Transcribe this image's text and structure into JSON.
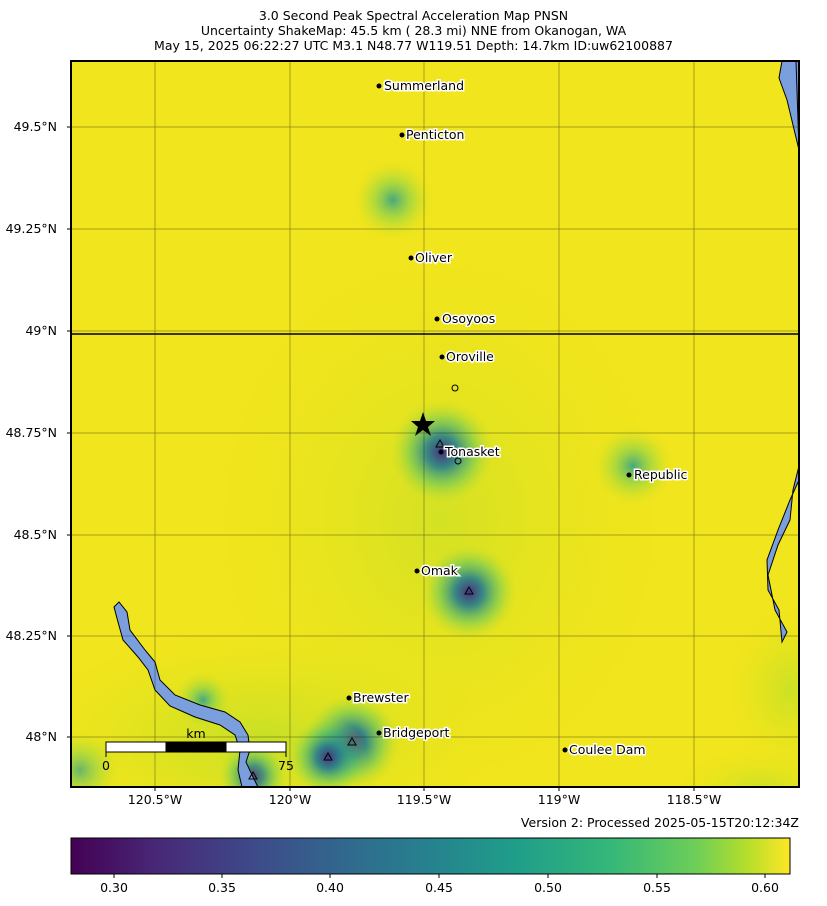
{
  "title": {
    "line1": "3.0 Second Peak Spectral Acceleration Map PNSN",
    "line2": "Uncertainty ShakeMap: 45.5 km (  28.3 mi) NNE from Okanogan, WA",
    "line3": "May 15, 2025 06:22:27 UTC M3.1 N48.77 W119.51 Depth: 14.7km ID:uw62100887"
  },
  "map": {
    "lat_ticks": [
      "49.5°N",
      "49.25°N",
      "49°N",
      "48.75°N",
      "48.5°N",
      "48.25°N",
      "48°N"
    ],
    "lon_ticks": [
      "120.5°W",
      "120°W",
      "119.5°W",
      "119°W",
      "118.5°W"
    ],
    "cities": [
      {
        "name": "Summerland"
      },
      {
        "name": "Penticton"
      },
      {
        "name": "Oliver"
      },
      {
        "name": "Osoyoos"
      },
      {
        "name": "Oroville"
      },
      {
        "name": "Tonasket"
      },
      {
        "name": "Republic"
      },
      {
        "name": "Omak"
      },
      {
        "name": "Brewster"
      },
      {
        "name": "Bridgeport"
      },
      {
        "name": "Coulee Dam"
      }
    ],
    "scale_bar": {
      "unit": "km",
      "start": "0",
      "end": "75"
    },
    "epicenter": {
      "lat": 48.77,
      "lon": -119.51
    },
    "colors": {
      "water": "#7b9fdc",
      "field_high": "#f1e51d",
      "field_mid": "#b5de2b",
      "field_low": "#35b779"
    }
  },
  "version": "Version 2: Processed 2025-05-15T20:12:34Z",
  "colorbar": {
    "ticks": [
      "0.30",
      "0.35",
      "0.40",
      "0.45",
      "0.50",
      "0.55",
      "0.60"
    ],
    "colormap": "viridis"
  }
}
